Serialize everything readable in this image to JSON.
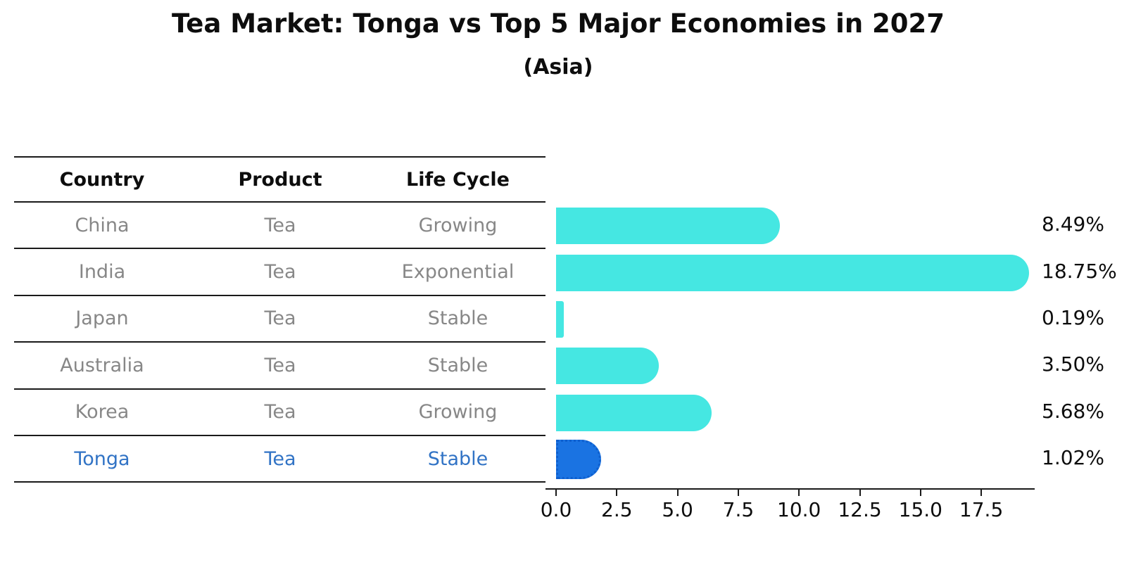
{
  "title": "Tea Market: Tonga vs Top 5 Major Economies in 2027",
  "subtitle": "(Asia)",
  "table": {
    "headers": [
      "Country",
      "Product",
      "Life Cycle"
    ],
    "rows": [
      {
        "country": "China",
        "product": "Tea",
        "life_cycle": "Growing",
        "highlight": false
      },
      {
        "country": "India",
        "product": "Tea",
        "life_cycle": "Exponential",
        "highlight": false
      },
      {
        "country": "Japan",
        "product": "Tea",
        "life_cycle": "Stable",
        "highlight": false
      },
      {
        "country": "Australia",
        "product": "Tea",
        "life_cycle": "Stable",
        "highlight": false
      },
      {
        "country": "Korea",
        "product": "Tea",
        "life_cycle": "Growing",
        "highlight": false
      },
      {
        "country": "Tonga",
        "product": "Tea",
        "life_cycle": "Stable",
        "highlight": true
      }
    ]
  },
  "chart_data": {
    "type": "bar",
    "orientation": "horizontal",
    "categories": [
      "China",
      "India",
      "Japan",
      "Australia",
      "Korea",
      "Tonga"
    ],
    "values": [
      8.49,
      18.75,
      0.19,
      3.5,
      5.68,
      1.02
    ],
    "value_labels": [
      "8.49%",
      "18.75%",
      "0.19%",
      "3.50%",
      "5.68%",
      "1.02%"
    ],
    "x_ticks": [
      0.0,
      2.5,
      5.0,
      7.5,
      10.0,
      12.5,
      15.0,
      17.5
    ],
    "x_tick_labels": [
      "0.0",
      "2.5",
      "5.0",
      "7.5",
      "10.0",
      "12.5",
      "15.0",
      "17.5"
    ],
    "xlim": [
      0,
      19.7
    ],
    "title": "Tea Market: Tonga vs Top 5 Major Economies in 2027",
    "xlabel": "",
    "ylabel": "",
    "grid": false,
    "legend": false,
    "bar_color": "#45e7e2",
    "highlight_bar_color": "#1a73e2",
    "highlight_index": 5
  },
  "colors": {
    "text": "#0d0d0d",
    "muted_text": "#878787",
    "highlight_text": "#3173c5",
    "line": "#1a1a1a",
    "bar": "#45e7e2",
    "highlight_bar": "#1a73e2"
  }
}
